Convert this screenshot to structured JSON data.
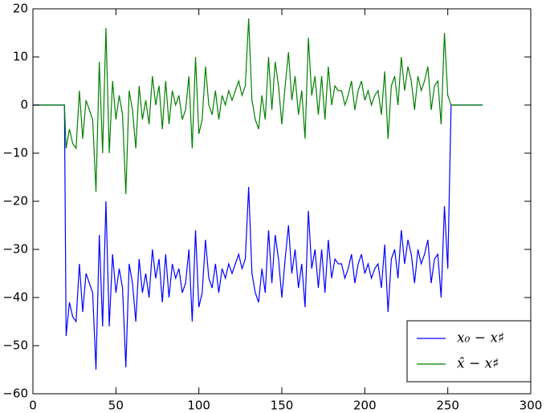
{
  "chart_data": {
    "type": "line",
    "x": [
      0,
      19,
      20,
      22,
      24,
      26,
      28,
      30,
      32,
      34,
      36,
      38,
      40,
      42,
      44,
      46,
      48,
      50,
      52,
      54,
      56,
      58,
      60,
      62,
      64,
      66,
      68,
      70,
      72,
      74,
      76,
      78,
      80,
      82,
      84,
      86,
      88,
      90,
      92,
      94,
      96,
      98,
      100,
      102,
      104,
      106,
      108,
      110,
      112,
      114,
      116,
      118,
      120,
      122,
      124,
      126,
      128,
      130,
      132,
      134,
      136,
      138,
      140,
      142,
      144,
      146,
      148,
      150,
      152,
      154,
      156,
      158,
      160,
      162,
      164,
      166,
      168,
      170,
      172,
      174,
      176,
      178,
      180,
      182,
      184,
      186,
      188,
      190,
      192,
      194,
      196,
      198,
      200,
      202,
      204,
      206,
      208,
      210,
      212,
      214,
      216,
      218,
      220,
      222,
      224,
      226,
      228,
      230,
      232,
      234,
      236,
      238,
      240,
      242,
      244,
      246,
      248,
      250,
      252,
      271
    ],
    "series": [
      {
        "name": "x₀ − x♯",
        "color": "#0000ff",
        "values": [
          0,
          0,
          -48,
          -41,
          -44,
          -45,
          -33,
          -43,
          -35,
          -37,
          -39,
          -55,
          -27,
          -46,
          -20,
          -46,
          -31,
          -39,
          -34,
          -38,
          -54.5,
          -33,
          -37,
          -45,
          -32,
          -39,
          -35,
          -40,
          -30,
          -36,
          -32,
          -41,
          -31,
          -40,
          -33,
          -36,
          -34,
          -39,
          -37,
          -30,
          -45,
          -26,
          -42,
          -39,
          -28,
          -36,
          -38,
          -33,
          -39,
          -34,
          -36,
          -33,
          -35,
          -33,
          -31,
          -34,
          -32,
          -17,
          -35,
          -39,
          -41,
          -34,
          -39,
          -26,
          -37,
          -27,
          -32,
          -40,
          -32,
          -25,
          -35,
          -30,
          -38,
          -33,
          -42,
          -22,
          -34,
          -30,
          -38,
          -30,
          -39,
          -28,
          -36,
          -32,
          -33,
          -33,
          -36,
          -34,
          -31,
          -37,
          -33,
          -31,
          -35,
          -33,
          -36,
          -34,
          -33,
          -38,
          -29,
          -43,
          -32,
          -30,
          -36,
          -26,
          -33,
          -28,
          -31,
          -37,
          -30,
          -33,
          -31,
          -28,
          -37,
          -32,
          -31,
          -40,
          -21,
          -34,
          0,
          0
        ]
      },
      {
        "name": "x̂ − x♯",
        "color": "#008000",
        "values": [
          0,
          0,
          -9,
          -5,
          -8,
          -9,
          3,
          -7,
          1,
          -1,
          -3,
          -18,
          9,
          -10,
          16,
          -10,
          5,
          -3,
          2,
          -2,
          -18.5,
          3,
          -1,
          -9,
          4,
          -3,
          1,
          -4,
          6,
          0,
          4,
          -5,
          5,
          -4,
          3,
          0,
          2,
          -3,
          -1,
          6,
          -9,
          10,
          -6,
          -3,
          8,
          0,
          -2,
          3,
          -3,
          2,
          0,
          3,
          1,
          3,
          5,
          2,
          4,
          18,
          1,
          -3,
          -5,
          2,
          -3,
          10,
          -1,
          9,
          4,
          -4,
          4,
          11,
          1,
          6,
          -2,
          3,
          -7,
          14,
          2,
          6,
          -2,
          6,
          -3,
          8,
          0,
          4,
          3,
          3,
          0,
          2,
          5,
          -1,
          3,
          5,
          1,
          3,
          0,
          2,
          3,
          -2,
          7,
          -7,
          4,
          6,
          0,
          10,
          3,
          8,
          5,
          -1,
          6,
          3,
          5,
          8,
          -1,
          4,
          5,
          -4,
          15,
          2,
          0,
          0
        ]
      }
    ],
    "xlim": [
      0,
      300
    ],
    "xticks": [
      0,
      50,
      100,
      150,
      200,
      250,
      300
    ],
    "ylim": [
      -60,
      20
    ],
    "yticks": [
      {
        "value": -60,
        "label": "−60"
      },
      {
        "value": -50,
        "label": "−50"
      },
      {
        "value": -40,
        "label": "−40"
      },
      {
        "value": -30,
        "label": "−30"
      },
      {
        "value": -20,
        "label": "−20"
      },
      {
        "value": -10,
        "label": "−10"
      },
      0,
      10,
      20
    ],
    "legend": "lower right"
  }
}
